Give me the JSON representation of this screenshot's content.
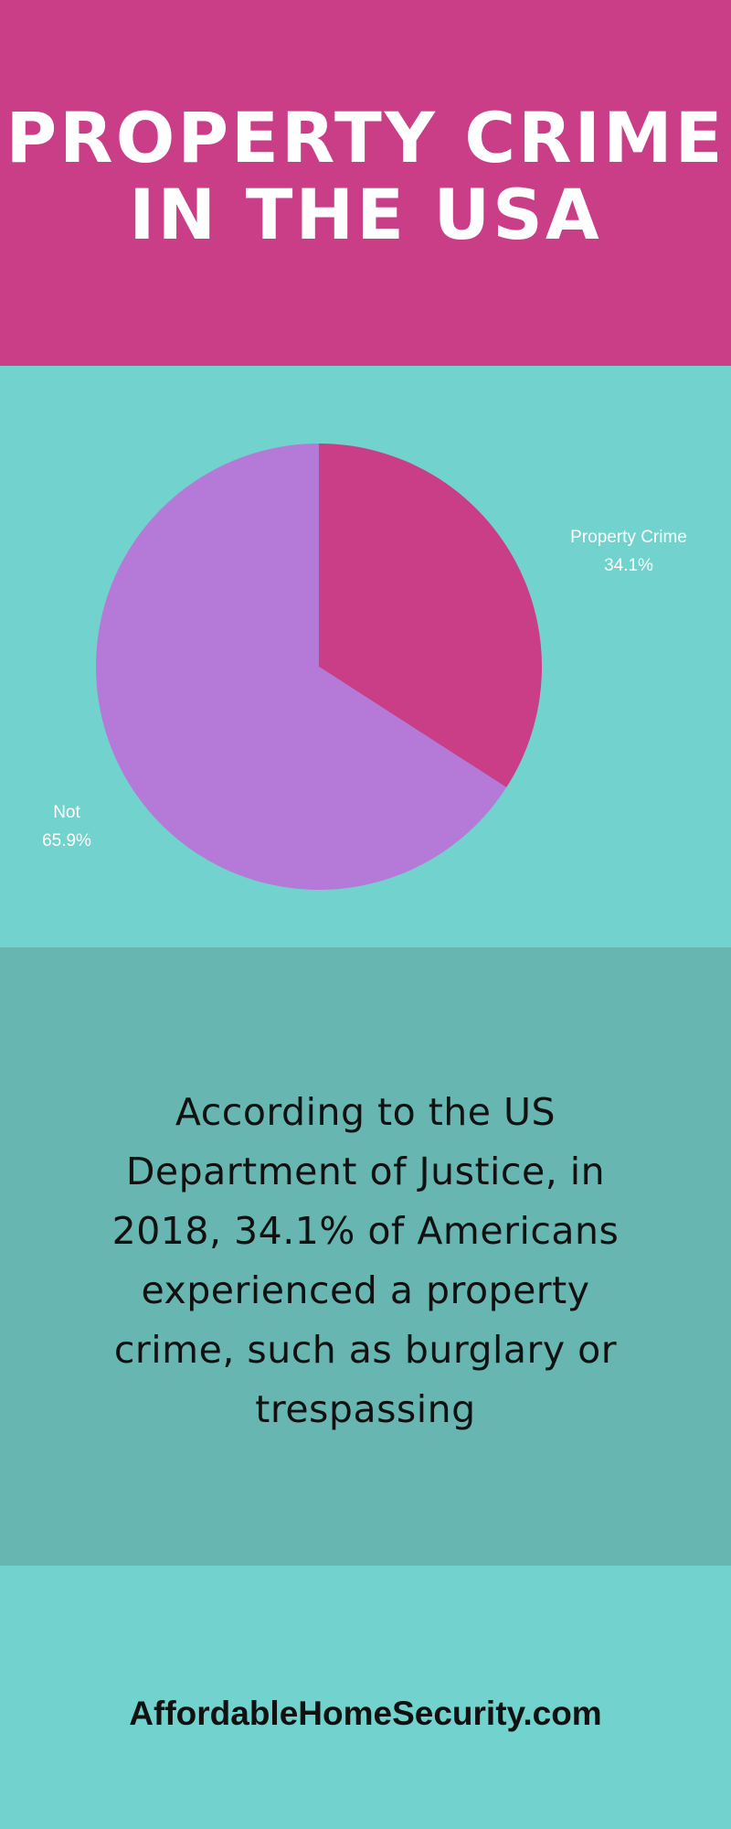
{
  "header": {
    "title_line_1": "PROPERTY CRIME",
    "title_line_2": "IN THE USA"
  },
  "chart_data": {
    "type": "pie",
    "slices": [
      {
        "label": "Property Crime",
        "value": 34.1,
        "value_label": "34.1%",
        "color": "#c93e87"
      },
      {
        "label": "Not",
        "value": 65.9,
        "value_label": "65.9%",
        "color": "#b57ad8"
      }
    ]
  },
  "body_text": "According to the US Department of Justice, in 2018, 34.1% of Americans experienced a property crime, such as burglary or trespassing",
  "footer": {
    "site": "AffordableHomeSecurity.com"
  },
  "colors": {
    "header_background": "#c93e87",
    "chart_background": "#72d2cd",
    "text_background": "#67b6b2",
    "footer_background": "#72d2cd"
  }
}
